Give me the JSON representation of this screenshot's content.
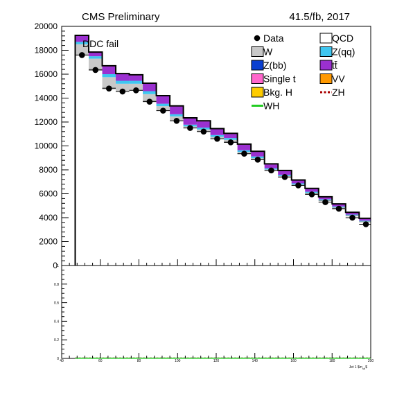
{
  "header": {
    "left_label": "CMS Preliminary",
    "right_label": "41.5/fb, 2017",
    "region_label": "DDC fail"
  },
  "colors": {
    "W": "#c8c8c8",
    "Z(qq)": "#3ec6f0",
    "Z(bb)": "#0a3fd0",
    "tt": "#9b30d0",
    "Single t": "#ff66cc",
    "VV": "#ff9900",
    "Bkg. H": "#ffcc00",
    "ZH": "#aa0000",
    "WH": "#22cc22"
  },
  "chart_data": [
    {
      "type": "bar",
      "subtype": "stacked-histogram-with-data-points",
      "xlim": [
        40,
        200
      ],
      "ylim": [
        0,
        20000
      ],
      "bin_edges": [
        47,
        54,
        61,
        68,
        75,
        82,
        89,
        96,
        103,
        110,
        117,
        124,
        131,
        138,
        145,
        152,
        159,
        166,
        173,
        180,
        187,
        194,
        201
      ],
      "y_ticks": [
        0,
        2000,
        4000,
        6000,
        8000,
        10000,
        12000,
        14000,
        16000,
        18000,
        20000
      ],
      "y_tick_labels": [
        "0",
        "2000",
        "4000",
        "6000",
        "8000",
        "10000",
        "12000",
        "14000",
        "16000",
        "18000",
        "20000"
      ],
      "legend": {
        "placement": "top-right",
        "entries": [
          {
            "label": "Data",
            "kind": "marker"
          },
          {
            "label": "QCD",
            "kind": "box"
          },
          {
            "label": "W",
            "kind": "box"
          },
          {
            "label": "Z(qq)",
            "kind": "box"
          },
          {
            "label": "Z(bb)",
            "kind": "box"
          },
          {
            "label": "tt̄",
            "kind": "box"
          },
          {
            "label": "Single t",
            "kind": "box"
          },
          {
            "label": "VV",
            "kind": "box"
          },
          {
            "label": "Bkg. H",
            "kind": "box"
          },
          {
            "label": "ZH",
            "kind": "dashed-line"
          },
          {
            "label": "WH",
            "kind": "line"
          }
        ]
      },
      "series": [
        {
          "name": "QCD",
          "values": [
            17600,
            16400,
            14850,
            14550,
            14650,
            13750,
            12950,
            12100,
            11500,
            11200,
            10600,
            10350,
            9350,
            8850,
            7950,
            7400,
            6700,
            6000,
            5400,
            4800,
            4150,
            3650
          ]
        },
        {
          "name": "W",
          "values": [
            900,
            900,
            900,
            650,
            550,
            580,
            380,
            370,
            130,
            180,
            160,
            160,
            140,
            120,
            80,
            80,
            70,
            70,
            60,
            60,
            50,
            40
          ]
        },
        {
          "name": "Z(qq)",
          "values": [
            200,
            200,
            250,
            250,
            250,
            250,
            200,
            180,
            150,
            150,
            150,
            150,
            150,
            150,
            100,
            100,
            100,
            100,
            80,
            80,
            60,
            60
          ]
        },
        {
          "name": "Z(bb)",
          "values": [
            0,
            0,
            0,
            0,
            0,
            0,
            0,
            0,
            0,
            0,
            0,
            0,
            0,
            0,
            0,
            0,
            0,
            0,
            0,
            0,
            0,
            0
          ]
        },
        {
          "name": "tt̄",
          "values": [
            500,
            300,
            650,
            550,
            450,
            620,
            620,
            650,
            520,
            520,
            490,
            340,
            460,
            380,
            320,
            320,
            230,
            230,
            160,
            160,
            140,
            150
          ]
        },
        {
          "name": "Single t",
          "values": [
            50,
            50,
            50,
            50,
            50,
            50,
            50,
            50,
            50,
            50,
            50,
            50,
            50,
            50,
            50,
            50,
            50,
            50,
            50,
            50,
            50,
            50
          ]
        },
        {
          "name": "VV",
          "values": [
            0,
            0,
            0,
            0,
            0,
            0,
            0,
            0,
            0,
            0,
            0,
            0,
            0,
            0,
            0,
            0,
            0,
            0,
            0,
            0,
            0,
            0
          ]
        },
        {
          "name": "Bkg. H",
          "values": [
            0,
            0,
            0,
            0,
            0,
            0,
            0,
            0,
            0,
            0,
            0,
            0,
            0,
            0,
            0,
            0,
            0,
            0,
            0,
            0,
            0,
            0
          ]
        }
      ],
      "data": {
        "name": "Data",
        "x": [
          50.5,
          57.5,
          64.5,
          71.5,
          78.5,
          85.5,
          92.5,
          99.5,
          106.5,
          113.5,
          120.5,
          127.5,
          134.5,
          141.5,
          148.5,
          155.5,
          162.5,
          169.5,
          176.5,
          183.5,
          190.5,
          197.5
        ],
        "y": [
          17600,
          16350,
          14800,
          14550,
          14650,
          13700,
          12950,
          12100,
          11500,
          11200,
          10600,
          10300,
          9350,
          8850,
          7950,
          7400,
          6700,
          5950,
          5300,
          4750,
          4000,
          3450
        ]
      }
    },
    {
      "type": "line",
      "subtype": "signal-over-background-ratio",
      "xlim": [
        40,
        200
      ],
      "ylim": [
        0,
        1
      ],
      "x_ticks": [
        40,
        60,
        80,
        100,
        120,
        140,
        160,
        180,
        200
      ],
      "x_tick_labels": [
        "40",
        "60",
        "80",
        "100",
        "120",
        "140",
        "160",
        "180",
        "200"
      ],
      "y_ticks": [
        0,
        0.2,
        0.4,
        0.6,
        0.8,
        1
      ],
      "y_tick_labels": [
        "0",
        "0.2",
        "0.4",
        "0.6",
        "0.8",
        "1"
      ],
      "xlabel": "Jet 1 $m_{sd}$",
      "series": [
        {
          "name": "ZH",
          "values": [
            0.003,
            0.003,
            0.003,
            0.003,
            0.003,
            0.003,
            0.003,
            0.003,
            0.003,
            0.003,
            0.003,
            0.003,
            0.003,
            0.003,
            0.003,
            0.003,
            0.003,
            0.003,
            0.003,
            0.003,
            0.003,
            0.003
          ]
        },
        {
          "name": "WH",
          "values": [
            0.002,
            0.002,
            0.002,
            0.002,
            0.002,
            0.002,
            0.002,
            0.002,
            0.002,
            0.002,
            0.002,
            0.002,
            0.002,
            0.002,
            0.002,
            0.002,
            0.002,
            0.002,
            0.002,
            0.002,
            0.002,
            0.002
          ]
        }
      ]
    }
  ]
}
